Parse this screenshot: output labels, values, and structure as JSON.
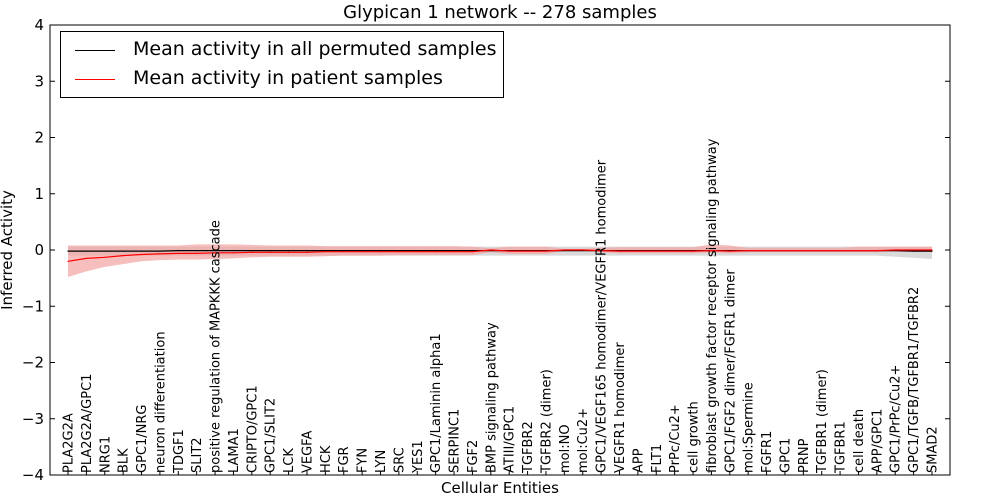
{
  "chart_data": {
    "type": "line",
    "title": "Glypican 1 network -- 278 samples",
    "xlabel": "Cellular Entities",
    "ylabel": "Inferred Activity",
    "ylim": [
      -4,
      4
    ],
    "yticks": [
      "−4",
      "−3",
      "−2",
      "−1",
      "0",
      "1",
      "2",
      "3",
      "4"
    ],
    "legend_position": "top-left",
    "categories": [
      "PLA2G2A",
      "PLA2G2A/GPC1",
      "NRG1",
      "BLK",
      "GPC1/NRG",
      "neuron differentiation",
      "TDGF1",
      "SLIT2",
      "positive regulation of MAPKKK cascade",
      "LAMA1",
      "CRIPTO/GPC1",
      "GPC1/SLIT2",
      "LCK",
      "VEGFA",
      "HCK",
      "FGR",
      "FYN",
      "LYN",
      "SRC",
      "YES1",
      "GPC1/Laminin alpha1",
      "SERPINC1",
      "FGF2",
      "BMP signaling pathway",
      "ATIII/GPC1",
      "TGFBR2",
      "TGFBR2 (dimer)",
      "mol:NO",
      "mol:Cu2+",
      "GPC1/VEGF165 homodimer/VEGFR1 homodimer",
      "VEGFR1 homodimer",
      "APP",
      "FLT1",
      "PrPc/Cu2+",
      "cell growth",
      "fibroblast growth factor receptor signaling pathway",
      "GPC1/FGF2 dimer/FGFR1 dimer",
      "mol:Spermine",
      "FGFR1",
      "GPC1",
      "PRNP",
      "TGFBR1 (dimer)",
      "TGFBR1",
      "cell death",
      "APP/GPC1",
      "GPC1/PrPc/Cu2+",
      "GPC1/TGFB/TGFBR1/TGFBR2",
      "SMAD2"
    ],
    "series": [
      {
        "name": "Mean activity in all permuted samples",
        "color": "#000000",
        "band_color": "#bbbbbb",
        "values": [
          -0.02,
          -0.02,
          -0.02,
          -0.02,
          -0.02,
          -0.02,
          -0.01,
          -0.01,
          -0.01,
          -0.01,
          -0.01,
          -0.01,
          -0.01,
          -0.01,
          -0.01,
          -0.01,
          -0.01,
          -0.01,
          -0.01,
          -0.01,
          -0.01,
          -0.01,
          -0.01,
          -0.01,
          -0.01,
          -0.01,
          -0.01,
          -0.01,
          -0.01,
          -0.01,
          -0.01,
          -0.01,
          -0.01,
          -0.01,
          -0.01,
          -0.01,
          -0.01,
          -0.01,
          -0.01,
          -0.01,
          -0.01,
          -0.01,
          -0.01,
          -0.01,
          -0.01,
          -0.01,
          -0.02,
          -0.02
        ],
        "lower": [
          -0.1,
          -0.1,
          -0.1,
          -0.1,
          -0.1,
          -0.1,
          -0.1,
          -0.1,
          -0.1,
          -0.1,
          -0.1,
          -0.1,
          -0.1,
          -0.1,
          -0.1,
          -0.1,
          -0.1,
          -0.1,
          -0.1,
          -0.1,
          -0.1,
          -0.1,
          -0.1,
          -0.1,
          -0.1,
          -0.1,
          -0.1,
          -0.1,
          -0.1,
          -0.1,
          -0.1,
          -0.1,
          -0.1,
          -0.1,
          -0.1,
          -0.1,
          -0.1,
          -0.1,
          -0.1,
          -0.1,
          -0.1,
          -0.1,
          -0.1,
          -0.1,
          -0.1,
          -0.12,
          -0.14,
          -0.16
        ],
        "upper": [
          0.06,
          0.06,
          0.06,
          0.06,
          0.06,
          0.06,
          0.06,
          0.06,
          0.06,
          0.06,
          0.06,
          0.06,
          0.06,
          0.06,
          0.06,
          0.06,
          0.06,
          0.06,
          0.06,
          0.06,
          0.06,
          0.06,
          0.06,
          0.06,
          0.06,
          0.06,
          0.06,
          0.06,
          0.06,
          0.06,
          0.06,
          0.06,
          0.06,
          0.06,
          0.06,
          0.06,
          0.06,
          0.06,
          0.06,
          0.06,
          0.06,
          0.06,
          0.06,
          0.06,
          0.06,
          0.06,
          0.06,
          0.06
        ]
      },
      {
        "name": "Mean activity in patient samples",
        "color": "#ff0000",
        "band_color": "#f4a3a3",
        "values": [
          -0.2,
          -0.15,
          -0.13,
          -0.1,
          -0.08,
          -0.07,
          -0.06,
          -0.06,
          -0.05,
          -0.05,
          -0.04,
          -0.04,
          -0.04,
          -0.04,
          -0.03,
          -0.03,
          -0.03,
          -0.03,
          -0.03,
          -0.03,
          -0.03,
          -0.03,
          -0.03,
          0.0,
          -0.02,
          -0.02,
          -0.02,
          0.0,
          0.0,
          -0.01,
          -0.02,
          -0.02,
          -0.02,
          -0.02,
          -0.02,
          -0.01,
          -0.02,
          -0.01,
          -0.01,
          -0.01,
          -0.01,
          -0.01,
          -0.01,
          -0.01,
          -0.01,
          0.0,
          0.0,
          0.0
        ],
        "lower": [
          -0.48,
          -0.38,
          -0.3,
          -0.25,
          -0.2,
          -0.18,
          -0.17,
          -0.17,
          -0.16,
          -0.15,
          -0.13,
          -0.12,
          -0.12,
          -0.12,
          -0.11,
          -0.1,
          -0.1,
          -0.1,
          -0.09,
          -0.09,
          -0.09,
          -0.09,
          -0.09,
          -0.04,
          -0.07,
          -0.07,
          -0.07,
          -0.02,
          -0.02,
          -0.04,
          -0.06,
          -0.06,
          -0.06,
          -0.06,
          -0.06,
          -0.04,
          -0.06,
          -0.04,
          -0.04,
          -0.04,
          -0.04,
          -0.04,
          -0.04,
          -0.04,
          -0.04,
          -0.03,
          -0.03,
          -0.03
        ],
        "upper": [
          0.08,
          0.08,
          0.08,
          0.08,
          0.08,
          0.08,
          0.08,
          0.1,
          0.1,
          0.1,
          0.09,
          0.08,
          0.08,
          0.08,
          0.07,
          0.07,
          0.07,
          0.07,
          0.07,
          0.07,
          0.07,
          0.07,
          0.06,
          0.03,
          0.06,
          0.06,
          0.06,
          0.02,
          0.02,
          0.04,
          0.05,
          0.05,
          0.05,
          0.05,
          0.05,
          0.1,
          0.08,
          0.04,
          0.04,
          0.04,
          0.04,
          0.04,
          0.04,
          0.06,
          0.06,
          0.06,
          0.06,
          0.06
        ]
      }
    ]
  }
}
